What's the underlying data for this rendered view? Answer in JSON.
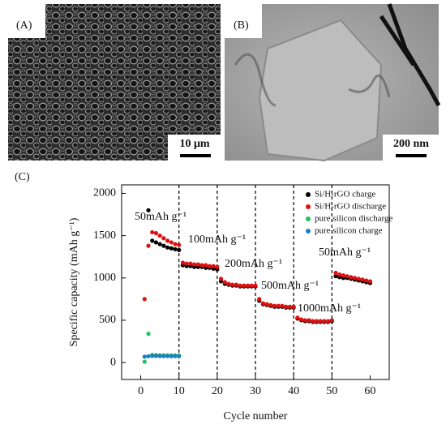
{
  "panels": {
    "a": {
      "label": "(A)",
      "scale_bar": "10 μm"
    },
    "b": {
      "label": "(B)",
      "scale_bar": "200 nm"
    }
  },
  "chart_data": {
    "type": "scatter",
    "panel_label": "(C)",
    "xlabel": "Cycle number",
    "ylabel": "Specific capacity (mAh g⁻¹)",
    "xlim": [
      -5,
      65
    ],
    "ylim": [
      -200,
      2100
    ],
    "xticks": [
      0,
      10,
      20,
      30,
      40,
      50,
      60
    ],
    "yticks": [
      0,
      500,
      1000,
      1500,
      2000
    ],
    "dividers": [
      10,
      20,
      30,
      40,
      50
    ],
    "annotations": [
      "50mAh g⁻¹",
      "100mAh g⁻¹",
      "200mAh g⁻¹",
      "500mAh g⁻¹",
      "1000mAh g⁻¹",
      "50mAh g⁻¹"
    ],
    "legend": "upper right",
    "series": [
      {
        "name": "Si/H-rGO charge",
        "color": "#000000",
        "x": [
          2,
          3,
          4,
          5,
          6,
          7,
          8,
          9,
          10,
          11,
          12,
          13,
          14,
          15,
          16,
          17,
          18,
          19,
          20,
          21,
          22,
          23,
          24,
          25,
          26,
          27,
          28,
          29,
          30,
          31,
          32,
          33,
          34,
          35,
          36,
          37,
          38,
          39,
          40,
          41,
          42,
          43,
          44,
          45,
          46,
          47,
          48,
          49,
          50,
          51,
          52,
          53,
          54,
          55,
          56,
          57,
          58,
          59,
          60
        ],
        "values": [
          1800,
          1440,
          1420,
          1400,
          1380,
          1360,
          1350,
          1340,
          1330,
          1150,
          1140,
          1140,
          1130,
          1130,
          1130,
          1120,
          1120,
          1110,
          1100,
          960,
          930,
          920,
          910,
          910,
          900,
          900,
          900,
          900,
          900,
          730,
          690,
          680,
          670,
          660,
          660,
          660,
          650,
          650,
          650,
          520,
          500,
          490,
          490,
          480,
          480,
          480,
          480,
          480,
          490,
          1020,
          1010,
          1000,
          1000,
          990,
          980,
          970,
          960,
          950,
          940
        ]
      },
      {
        "name": "Si/H-rGO discharge",
        "color": "#e01010",
        "x": [
          1,
          2,
          3,
          4,
          5,
          6,
          7,
          8,
          9,
          10,
          11,
          12,
          13,
          14,
          15,
          16,
          17,
          18,
          19,
          20,
          21,
          22,
          23,
          24,
          25,
          26,
          27,
          28,
          29,
          30,
          31,
          32,
          33,
          34,
          35,
          36,
          37,
          38,
          39,
          40,
          41,
          42,
          43,
          44,
          45,
          46,
          47,
          48,
          49,
          50,
          51,
          52,
          53,
          54,
          55,
          56,
          57,
          58,
          59,
          60
        ],
        "values": [
          750,
          1380,
          1540,
          1530,
          1500,
          1470,
          1440,
          1420,
          1400,
          1390,
          1180,
          1170,
          1170,
          1160,
          1160,
          1150,
          1150,
          1140,
          1140,
          1130,
          990,
          950,
          930,
          920,
          920,
          910,
          910,
          910,
          910,
          910,
          750,
          700,
          690,
          680,
          670,
          670,
          670,
          660,
          660,
          660,
          530,
          510,
          500,
          500,
          490,
          490,
          490,
          490,
          490,
          500,
          1060,
          1040,
          1030,
          1020,
          1010,
          1000,
          990,
          980,
          970,
          960
        ]
      },
      {
        "name": "pure silicon discharge",
        "color": "#20c060",
        "x": [
          1,
          2,
          3,
          4,
          5,
          6,
          7,
          8,
          9,
          10
        ],
        "values": [
          10,
          340,
          90,
          88,
          86,
          85,
          85,
          84,
          84,
          83
        ]
      },
      {
        "name": "pure silicon charge",
        "color": "#1e7fc0",
        "x": [
          1,
          2,
          3,
          4,
          5,
          6,
          7,
          8,
          9,
          10
        ],
        "values": [
          70,
          75,
          78,
          78,
          77,
          76,
          76,
          75,
          75,
          75
        ]
      }
    ]
  }
}
